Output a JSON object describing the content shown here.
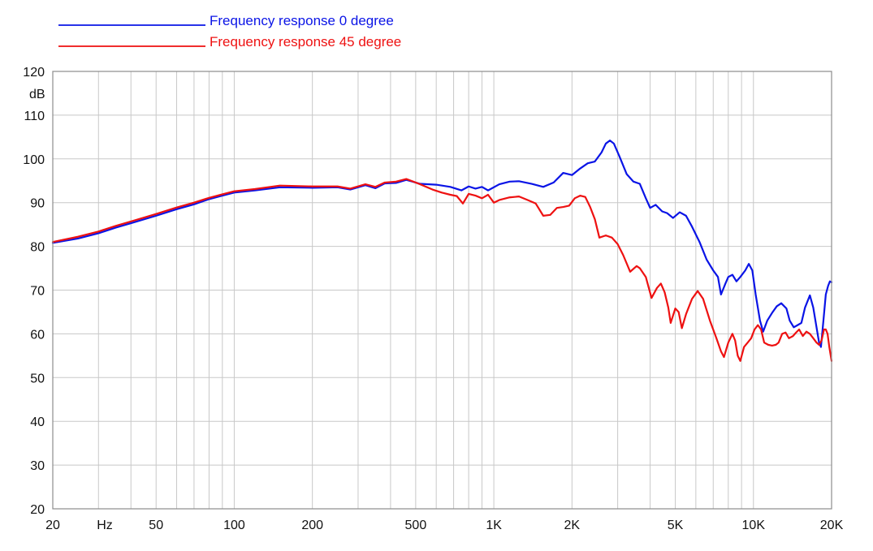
{
  "chart_data": {
    "type": "line",
    "title": "",
    "xlabel": "",
    "ylabel": "dB",
    "x_unit_label": "Hz",
    "x_scale": "log",
    "xlim": [
      20,
      20000
    ],
    "ylim": [
      20,
      120
    ],
    "y_ticks": [
      20,
      30,
      40,
      50,
      60,
      70,
      80,
      90,
      100,
      110,
      120
    ],
    "x_ticks": [
      {
        "value": 20,
        "label": "20"
      },
      {
        "value": 50,
        "label": "50"
      },
      {
        "value": 100,
        "label": "100"
      },
      {
        "value": 200,
        "label": "200"
      },
      {
        "value": 500,
        "label": "500"
      },
      {
        "value": 1000,
        "label": "1K"
      },
      {
        "value": 2000,
        "label": "2K"
      },
      {
        "value": 5000,
        "label": "5K"
      },
      {
        "value": 10000,
        "label": "10K"
      },
      {
        "value": 20000,
        "label": "20K"
      }
    ],
    "grid": true,
    "legend_position": "top-left",
    "series": [
      {
        "name": "Frequency response 0 degree",
        "color": "#0a14e6",
        "points": [
          [
            20,
            80.8
          ],
          [
            25,
            81.8
          ],
          [
            30,
            83.0
          ],
          [
            35,
            84.3
          ],
          [
            40,
            85.3
          ],
          [
            50,
            87.0
          ],
          [
            60,
            88.5
          ],
          [
            70,
            89.6
          ],
          [
            80,
            90.8
          ],
          [
            90,
            91.6
          ],
          [
            100,
            92.3
          ],
          [
            120,
            92.8
          ],
          [
            150,
            93.5
          ],
          [
            200,
            93.4
          ],
          [
            250,
            93.5
          ],
          [
            280,
            93.0
          ],
          [
            320,
            94.0
          ],
          [
            350,
            93.3
          ],
          [
            380,
            94.4
          ],
          [
            420,
            94.5
          ],
          [
            460,
            95.2
          ],
          [
            480,
            94.9
          ],
          [
            520,
            94.3
          ],
          [
            600,
            94.1
          ],
          [
            680,
            93.6
          ],
          [
            750,
            92.8
          ],
          [
            800,
            93.7
          ],
          [
            850,
            93.2
          ],
          [
            900,
            93.6
          ],
          [
            950,
            92.8
          ],
          [
            1050,
            94.2
          ],
          [
            1150,
            94.8
          ],
          [
            1250,
            94.9
          ],
          [
            1400,
            94.3
          ],
          [
            1550,
            93.6
          ],
          [
            1700,
            94.6
          ],
          [
            1850,
            96.8
          ],
          [
            2000,
            96.3
          ],
          [
            2150,
            97.8
          ],
          [
            2300,
            99.0
          ],
          [
            2450,
            99.4
          ],
          [
            2600,
            101.5
          ],
          [
            2700,
            103.5
          ],
          [
            2800,
            104.2
          ],
          [
            2900,
            103.5
          ],
          [
            3050,
            100.5
          ],
          [
            3250,
            96.5
          ],
          [
            3450,
            94.8
          ],
          [
            3650,
            94.3
          ],
          [
            3850,
            91.0
          ],
          [
            4000,
            88.8
          ],
          [
            4200,
            89.5
          ],
          [
            4450,
            88.0
          ],
          [
            4650,
            87.6
          ],
          [
            4900,
            86.5
          ],
          [
            5200,
            87.8
          ],
          [
            5500,
            87.0
          ],
          [
            5800,
            84.5
          ],
          [
            6200,
            81.0
          ],
          [
            6600,
            77.0
          ],
          [
            7000,
            74.5
          ],
          [
            7300,
            73.0
          ],
          [
            7500,
            69.0
          ],
          [
            7800,
            71.5
          ],
          [
            8000,
            73.0
          ],
          [
            8300,
            73.5
          ],
          [
            8600,
            72.0
          ],
          [
            8900,
            73.0
          ],
          [
            9300,
            74.5
          ],
          [
            9600,
            76.0
          ],
          [
            9900,
            74.5
          ],
          [
            10200,
            69.0
          ],
          [
            10600,
            63.0
          ],
          [
            10900,
            60.5
          ],
          [
            11300,
            63.0
          ],
          [
            11800,
            64.8
          ],
          [
            12300,
            66.3
          ],
          [
            12800,
            67.0
          ],
          [
            13400,
            65.8
          ],
          [
            13800,
            63.0
          ],
          [
            14300,
            61.5
          ],
          [
            14800,
            62.0
          ],
          [
            15300,
            62.5
          ],
          [
            15800,
            66.0
          ],
          [
            16500,
            68.8
          ],
          [
            17000,
            66.0
          ],
          [
            17500,
            61.5
          ],
          [
            17900,
            58.0
          ],
          [
            18200,
            57.0
          ],
          [
            18600,
            63.0
          ],
          [
            19000,
            69.0
          ],
          [
            19400,
            71.0
          ],
          [
            19700,
            72.0
          ],
          [
            20000,
            71.8
          ]
        ]
      },
      {
        "name": "Frequency response 45 degree",
        "color": "#ee1111",
        "points": [
          [
            20,
            81.0
          ],
          [
            25,
            82.2
          ],
          [
            30,
            83.4
          ],
          [
            35,
            84.7
          ],
          [
            40,
            85.7
          ],
          [
            50,
            87.4
          ],
          [
            60,
            88.9
          ],
          [
            70,
            90.0
          ],
          [
            80,
            91.1
          ],
          [
            90,
            91.9
          ],
          [
            100,
            92.6
          ],
          [
            120,
            93.1
          ],
          [
            150,
            93.9
          ],
          [
            200,
            93.7
          ],
          [
            250,
            93.7
          ],
          [
            280,
            93.2
          ],
          [
            320,
            94.2
          ],
          [
            350,
            93.6
          ],
          [
            380,
            94.6
          ],
          [
            420,
            94.8
          ],
          [
            460,
            95.4
          ],
          [
            480,
            95.0
          ],
          [
            520,
            94.2
          ],
          [
            580,
            93.0
          ],
          [
            630,
            92.3
          ],
          [
            680,
            91.8
          ],
          [
            720,
            91.5
          ],
          [
            760,
            89.8
          ],
          [
            800,
            92.0
          ],
          [
            850,
            91.6
          ],
          [
            900,
            91.0
          ],
          [
            950,
            91.8
          ],
          [
            1000,
            90.0
          ],
          [
            1050,
            90.6
          ],
          [
            1150,
            91.2
          ],
          [
            1250,
            91.4
          ],
          [
            1350,
            90.6
          ],
          [
            1450,
            89.8
          ],
          [
            1550,
            87.0
          ],
          [
            1650,
            87.2
          ],
          [
            1750,
            88.8
          ],
          [
            1850,
            89.0
          ],
          [
            1950,
            89.3
          ],
          [
            2050,
            91.0
          ],
          [
            2150,
            91.6
          ],
          [
            2250,
            91.3
          ],
          [
            2350,
            89.0
          ],
          [
            2450,
            86.2
          ],
          [
            2550,
            82.0
          ],
          [
            2700,
            82.5
          ],
          [
            2850,
            82.0
          ],
          [
            3000,
            80.5
          ],
          [
            3150,
            78.0
          ],
          [
            3350,
            74.2
          ],
          [
            3550,
            75.5
          ],
          [
            3650,
            75.0
          ],
          [
            3850,
            73.0
          ],
          [
            4050,
            68.2
          ],
          [
            4250,
            70.5
          ],
          [
            4400,
            71.5
          ],
          [
            4550,
            69.5
          ],
          [
            4700,
            66.0
          ],
          [
            4800,
            62.5
          ],
          [
            5000,
            65.8
          ],
          [
            5150,
            65.0
          ],
          [
            5300,
            61.3
          ],
          [
            5500,
            64.5
          ],
          [
            5800,
            68.0
          ],
          [
            6100,
            69.8
          ],
          [
            6400,
            68.0
          ],
          [
            6800,
            63.0
          ],
          [
            7200,
            59.0
          ],
          [
            7500,
            56.0
          ],
          [
            7700,
            54.7
          ],
          [
            8000,
            58.0
          ],
          [
            8300,
            60.0
          ],
          [
            8500,
            58.5
          ],
          [
            8700,
            55.0
          ],
          [
            8900,
            53.8
          ],
          [
            9200,
            57.0
          ],
          [
            9500,
            58.0
          ],
          [
            9800,
            59.0
          ],
          [
            10100,
            61.0
          ],
          [
            10400,
            62.0
          ],
          [
            10700,
            61.0
          ],
          [
            11000,
            58.0
          ],
          [
            11400,
            57.5
          ],
          [
            11800,
            57.3
          ],
          [
            12200,
            57.5
          ],
          [
            12500,
            58.0
          ],
          [
            12900,
            60.0
          ],
          [
            13300,
            60.3
          ],
          [
            13700,
            59.0
          ],
          [
            14200,
            59.5
          ],
          [
            14600,
            60.3
          ],
          [
            15000,
            61.0
          ],
          [
            15500,
            59.5
          ],
          [
            16000,
            60.5
          ],
          [
            16500,
            60.0
          ],
          [
            17000,
            59.0
          ],
          [
            17500,
            58.0
          ],
          [
            17900,
            57.5
          ],
          [
            18300,
            58.5
          ],
          [
            18700,
            61.0
          ],
          [
            19000,
            61.0
          ],
          [
            19300,
            60.0
          ],
          [
            19600,
            57.0
          ],
          [
            20000,
            53.8
          ]
        ]
      }
    ]
  }
}
